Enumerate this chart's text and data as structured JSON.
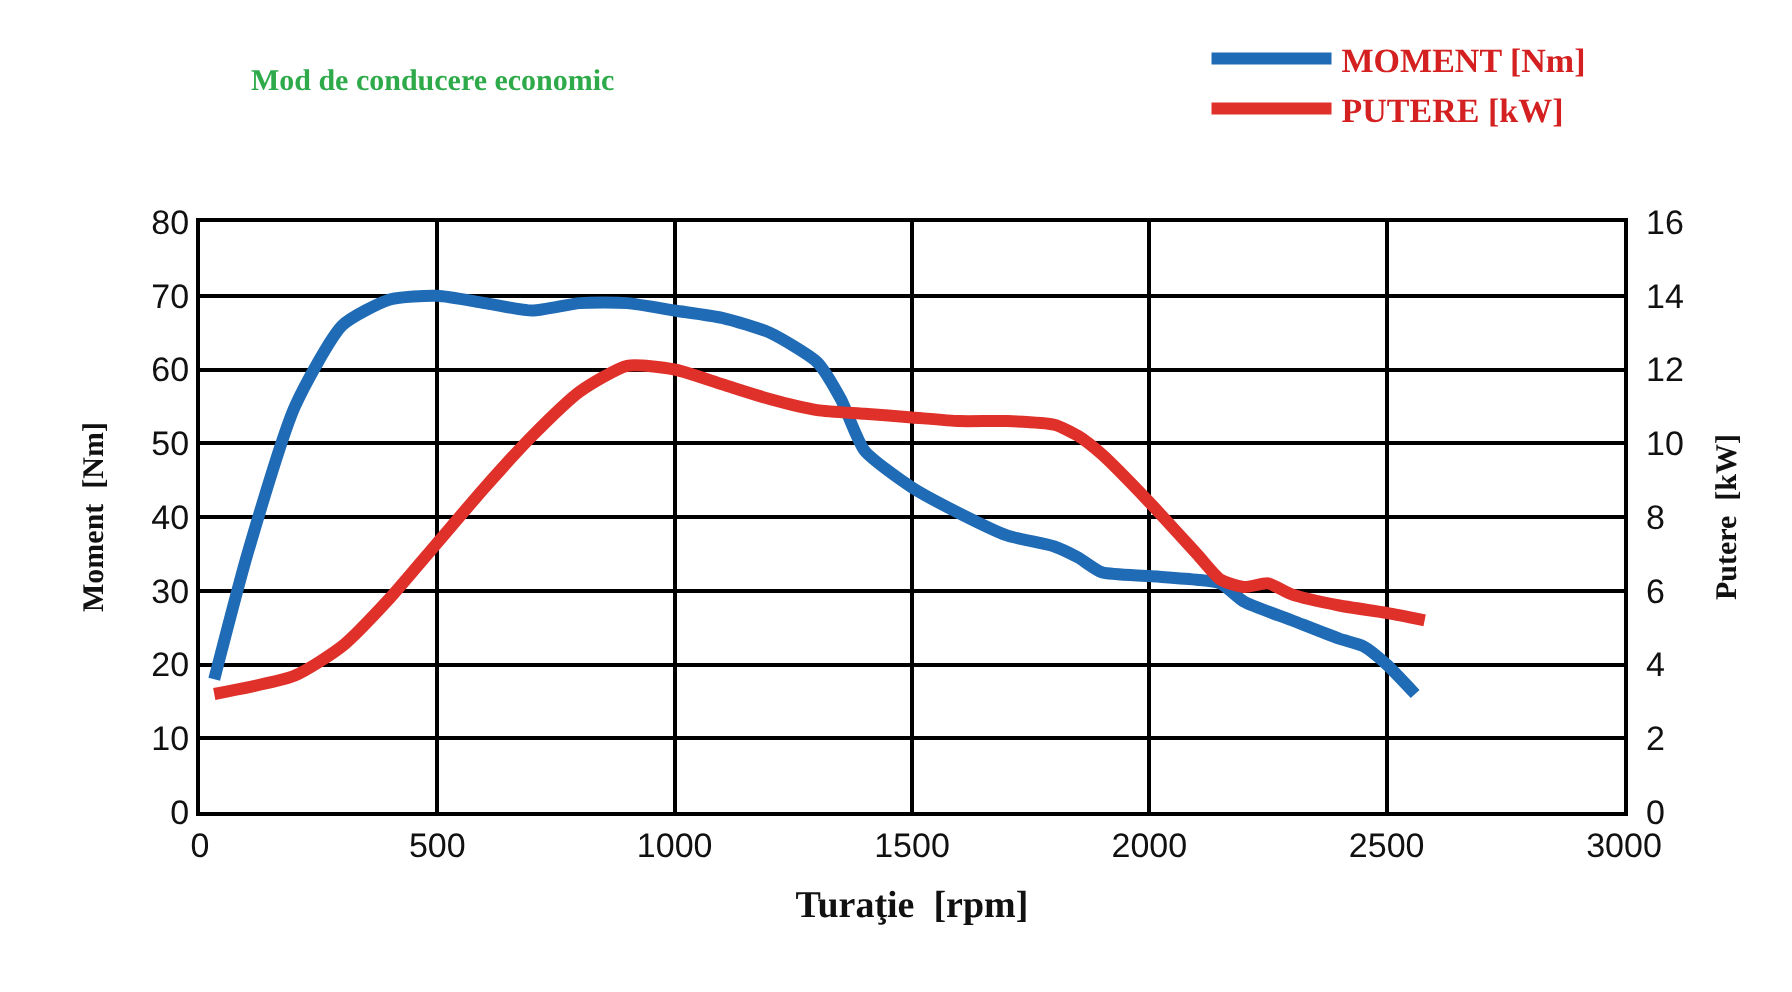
{
  "chart_data": {
    "type": "line",
    "title": "Mod de conducere economic",
    "xlabel": "Turaţie  [rpm]",
    "ylabel": "Moment  [Nm]",
    "y2label": "Putere  [kW]",
    "xlim": [
      0,
      3000
    ],
    "xticks": [
      0,
      500,
      1000,
      1500,
      2000,
      2500,
      3000
    ],
    "ylim": [
      0,
      80
    ],
    "yticks": [
      0,
      10,
      20,
      30,
      40,
      50,
      60,
      70,
      80
    ],
    "y2lim": [
      0,
      16
    ],
    "y2ticks": [
      0,
      2,
      4,
      6,
      8,
      10,
      12,
      14,
      16
    ],
    "grid": true,
    "legend": "top right",
    "marker": "none",
    "line_style": "solid",
    "series": [
      {
        "name": "MOMENT [Nm]",
        "color": "#1f6bb5",
        "x": [
          30,
          100,
          200,
          300,
          400,
          500,
          600,
          700,
          800,
          900,
          1000,
          1100,
          1200,
          1300,
          1350,
          1400,
          1500,
          1600,
          1700,
          1800,
          1850,
          1900,
          2000,
          2100,
          2150,
          2200,
          2300,
          2400,
          2450,
          2500,
          2560
        ],
        "values": [
          18,
          35,
          55,
          66,
          69.5,
          70,
          69,
          68,
          69,
          69,
          68,
          67,
          65,
          61,
          56,
          49,
          44,
          40.5,
          37.5,
          36,
          34.5,
          32.5,
          32,
          31.5,
          31,
          28.5,
          26,
          23.5,
          22.5,
          20,
          16
        ]
      },
      {
        "name": "PUTERE [kW]",
        "color": "#e0302a",
        "axis": "y2",
        "x": [
          30,
          200,
          300,
          400,
          500,
          600,
          700,
          800,
          900,
          1000,
          1100,
          1200,
          1300,
          1400,
          1500,
          1600,
          1700,
          1800,
          1850,
          1900,
          2000,
          2100,
          2150,
          2200,
          2250,
          2300,
          2400,
          2500,
          2580
        ],
        "values": [
          3.2,
          3.7,
          4.5,
          5.8,
          7.3,
          8.8,
          10.2,
          11.4,
          12.1,
          12.0,
          11.6,
          11.2,
          10.9,
          10.8,
          10.7,
          10.6,
          10.6,
          10.5,
          10.2,
          9.7,
          8.4,
          7.0,
          6.3,
          6.1,
          6.2,
          5.9,
          5.6,
          5.4,
          5.2
        ]
      }
    ]
  }
}
